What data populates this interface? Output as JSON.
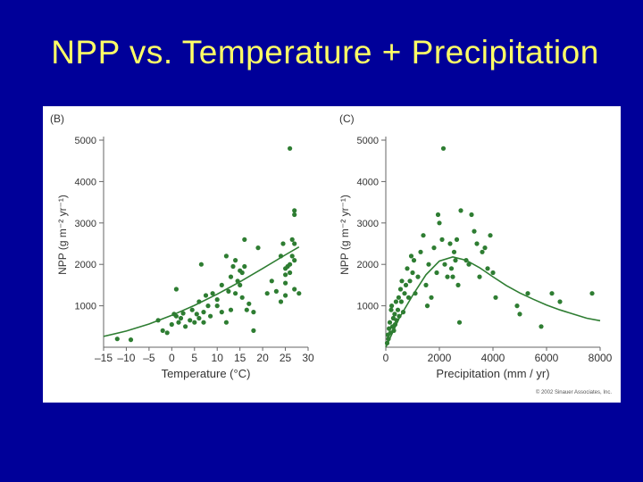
{
  "slide": {
    "title": "NPP vs. Temperature + Precipitation"
  },
  "colors": {
    "background": "#000099",
    "title": "#ffff66",
    "points": "#2e7d32",
    "curve": "#2e7d32"
  },
  "copyright": "© 2002 Sinauer Associates, Inc.",
  "chart_data": [
    {
      "type": "scatter",
      "panel_label": "(B)",
      "xlabel": "Temperature (°C)",
      "ylabel": "NPP (g m⁻² yr⁻¹)",
      "xlim": [
        -15,
        30
      ],
      "ylim": [
        0,
        5000
      ],
      "xticks": [
        -15,
        -10,
        -5,
        0,
        5,
        10,
        15,
        20,
        25,
        30
      ],
      "xtick_labels": [
        "–15",
        "–10",
        "–5",
        "0",
        "5",
        "10",
        "15",
        "20",
        "25",
        "30"
      ],
      "yticks": [
        1000,
        2000,
        3000,
        4000,
        5000
      ],
      "ytick_labels": [
        "1000",
        "2000",
        "3000",
        "4000",
        "5000"
      ],
      "points": [
        [
          -12,
          200
        ],
        [
          -9,
          180
        ],
        [
          -3,
          650
        ],
        [
          -2,
          400
        ],
        [
          -1,
          350
        ],
        [
          0,
          550
        ],
        [
          0.5,
          800
        ],
        [
          1,
          1400
        ],
        [
          1,
          750
        ],
        [
          1.5,
          600
        ],
        [
          2,
          700
        ],
        [
          2.5,
          820
        ],
        [
          3,
          500
        ],
        [
          4,
          650
        ],
        [
          4.5,
          900
        ],
        [
          5,
          600
        ],
        [
          5.5,
          800
        ],
        [
          6,
          1100
        ],
        [
          6,
          700
        ],
        [
          6.5,
          2000
        ],
        [
          7,
          850
        ],
        [
          7,
          600
        ],
        [
          7.5,
          1250
        ],
        [
          8,
          1000
        ],
        [
          8.5,
          750
        ],
        [
          9,
          1300
        ],
        [
          10,
          1150
        ],
        [
          10,
          1000
        ],
        [
          11,
          850
        ],
        [
          11,
          1500
        ],
        [
          12,
          600
        ],
        [
          12,
          2200
        ],
        [
          12.5,
          1350
        ],
        [
          13,
          1700
        ],
        [
          13,
          900
        ],
        [
          13.5,
          1950
        ],
        [
          14,
          2100
        ],
        [
          14,
          1300
        ],
        [
          14.5,
          1600
        ],
        [
          15,
          1850
        ],
        [
          15,
          1500
        ],
        [
          15.5,
          1800
        ],
        [
          15.5,
          1200
        ],
        [
          16,
          1950
        ],
        [
          16,
          2600
        ],
        [
          16.5,
          900
        ],
        [
          17,
          1050
        ],
        [
          18,
          400
        ],
        [
          18,
          850
        ],
        [
          19,
          2400
        ],
        [
          21,
          1300
        ],
        [
          22,
          1600
        ],
        [
          23,
          1350
        ],
        [
          24,
          1100
        ],
        [
          24,
          2200
        ],
        [
          24.5,
          2500
        ],
        [
          25,
          1900
        ],
        [
          25,
          1550
        ],
        [
          25,
          1250
        ],
        [
          25,
          1750
        ],
        [
          25.5,
          1950
        ],
        [
          26,
          4800
        ],
        [
          26,
          2000
        ],
        [
          26,
          1800
        ],
        [
          26.5,
          2200
        ],
        [
          26.5,
          2600
        ],
        [
          27,
          3200
        ],
        [
          27,
          3300
        ],
        [
          27,
          2500
        ],
        [
          27,
          2100
        ],
        [
          27,
          1400
        ],
        [
          28,
          1300
        ]
      ],
      "curve": [
        [
          -15,
          260
        ],
        [
          -10,
          390
        ],
        [
          -5,
          560
        ],
        [
          0,
          770
        ],
        [
          5,
          1010
        ],
        [
          10,
          1280
        ],
        [
          15,
          1580
        ],
        [
          20,
          1900
        ],
        [
          25,
          2230
        ],
        [
          28,
          2420
        ]
      ]
    },
    {
      "type": "scatter",
      "panel_label": "(C)",
      "xlabel": "Precipitation (mm / yr)",
      "ylabel": "NPP (g m⁻² yr⁻¹)",
      "xlim": [
        0,
        8000
      ],
      "ylim": [
        0,
        5000
      ],
      "xticks": [
        0,
        2000,
        4000,
        6000,
        8000
      ],
      "xtick_labels": [
        "0",
        "2000",
        "4000",
        "6000",
        "8000"
      ],
      "yticks": [
        1000,
        2000,
        3000,
        4000,
        5000
      ],
      "ytick_labels": [
        "1000",
        "2000",
        "3000",
        "4000",
        "5000"
      ],
      "points": [
        [
          50,
          100
        ],
        [
          80,
          300
        ],
        [
          100,
          200
        ],
        [
          120,
          450
        ],
        [
          150,
          600
        ],
        [
          180,
          350
        ],
        [
          200,
          900
        ],
        [
          220,
          1000
        ],
        [
          250,
          500
        ],
        [
          280,
          700
        ],
        [
          300,
          400
        ],
        [
          330,
          800
        ],
        [
          350,
          550
        ],
        [
          380,
          1100
        ],
        [
          400,
          650
        ],
        [
          450,
          900
        ],
        [
          480,
          1200
        ],
        [
          500,
          750
        ],
        [
          550,
          1400
        ],
        [
          580,
          1100
        ],
        [
          600,
          1600
        ],
        [
          650,
          850
        ],
        [
          700,
          1300
        ],
        [
          750,
          1500
        ],
        [
          800,
          1900
        ],
        [
          850,
          1200
        ],
        [
          900,
          1600
        ],
        [
          950,
          2200
        ],
        [
          1000,
          1800
        ],
        [
          1050,
          2100
        ],
        [
          1100,
          1300
        ],
        [
          1200,
          1700
        ],
        [
          1300,
          2300
        ],
        [
          1400,
          2700
        ],
        [
          1500,
          1500
        ],
        [
          1550,
          1000
        ],
        [
          1600,
          2000
        ],
        [
          1700,
          1200
        ],
        [
          1800,
          2400
        ],
        [
          1900,
          1800
        ],
        [
          1950,
          3200
        ],
        [
          2000,
          3000
        ],
        [
          2100,
          2600
        ],
        [
          2150,
          4800
        ],
        [
          2200,
          2000
        ],
        [
          2300,
          1700
        ],
        [
          2400,
          2500
        ],
        [
          2450,
          1900
        ],
        [
          2500,
          1700
        ],
        [
          2550,
          2300
        ],
        [
          2600,
          2100
        ],
        [
          2650,
          2600
        ],
        [
          2700,
          1500
        ],
        [
          2750,
          600
        ],
        [
          2800,
          3300
        ],
        [
          3000,
          2100
        ],
        [
          3100,
          2000
        ],
        [
          3200,
          3200
        ],
        [
          3300,
          2800
        ],
        [
          3400,
          2500
        ],
        [
          3500,
          1700
        ],
        [
          3600,
          2300
        ],
        [
          3700,
          2400
        ],
        [
          3800,
          1900
        ],
        [
          3900,
          2700
        ],
        [
          4000,
          1800
        ],
        [
          4100,
          1200
        ],
        [
          4900,
          1000
        ],
        [
          5000,
          800
        ],
        [
          5300,
          1300
        ],
        [
          5800,
          500
        ],
        [
          6200,
          1300
        ],
        [
          6500,
          1100
        ],
        [
          7700,
          1300
        ]
      ],
      "curve": [
        [
          0,
          0
        ],
        [
          250,
          350
        ],
        [
          500,
          700
        ],
        [
          1000,
          1250
        ],
        [
          1500,
          1750
        ],
        [
          2000,
          2080
        ],
        [
          2500,
          2180
        ],
        [
          3000,
          2100
        ],
        [
          3500,
          1920
        ],
        [
          4000,
          1700
        ],
        [
          4500,
          1490
        ],
        [
          5000,
          1310
        ],
        [
          5500,
          1160
        ],
        [
          6000,
          1020
        ],
        [
          6500,
          900
        ],
        [
          7000,
          800
        ],
        [
          7500,
          700
        ],
        [
          8000,
          640
        ]
      ]
    }
  ]
}
